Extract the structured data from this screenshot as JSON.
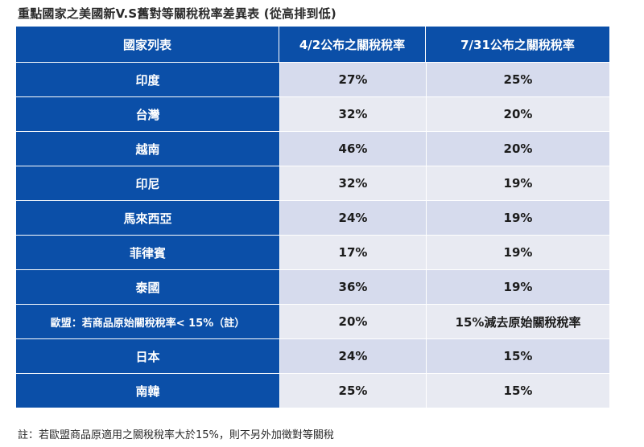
{
  "title": "重點國家之美國新V.S舊對等關稅稅率差異表 (從高排到低)",
  "table": {
    "headers": [
      "國家列表",
      "4/2公布之關稅稅率",
      "7/31公布之關稅稅率"
    ],
    "rows": [
      {
        "country": "印度",
        "apr": "27%",
        "jul": "25%"
      },
      {
        "country": "台灣",
        "apr": "32%",
        "jul": "20%"
      },
      {
        "country": "越南",
        "apr": "46%",
        "jul": "20%"
      },
      {
        "country": "印尼",
        "apr": "32%",
        "jul": "19%"
      },
      {
        "country": "馬來西亞",
        "apr": "24%",
        "jul": "19%"
      },
      {
        "country": "菲律賓",
        "apr": "17%",
        "jul": "19%"
      },
      {
        "country": "泰國",
        "apr": "36%",
        "jul": "19%"
      },
      {
        "country": "歐盟：若商品原始關稅稅率< 15%（註）",
        "apr": "20%",
        "jul": "15%減去原始關稅稅率"
      },
      {
        "country": "日本",
        "apr": "24%",
        "jul": "15%"
      },
      {
        "country": "南韓",
        "apr": "25%",
        "jul": "15%"
      }
    ]
  },
  "note": "註：若歐盟商品原適用之關稅稅率大於15%，則不另外加徵對等關稅",
  "colors": {
    "header_blue": "#0b4fa8",
    "row_light": "#d6dbed",
    "row_lighter": "#e8eaf2"
  }
}
